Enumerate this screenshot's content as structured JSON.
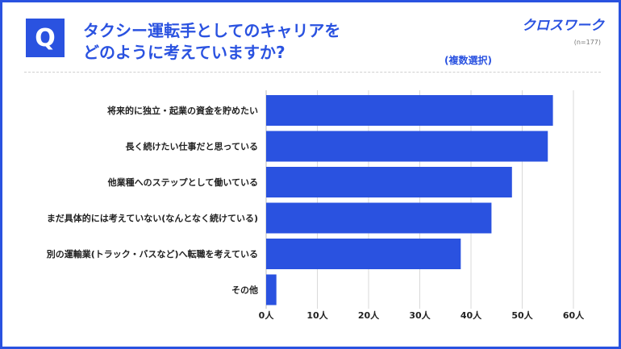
{
  "header": {
    "q_badge": "Q",
    "title_line1": "タクシー運転手としてのキャリアを",
    "title_line2": "どのように考えていますか?",
    "logo": "クロスワーク",
    "sample_size": "(n=177)",
    "note": "(複数選択)"
  },
  "colors": {
    "accent": "#2a52e0",
    "bar": "#2a52e0",
    "grid": "#d9d9d9"
  },
  "chart_data": {
    "type": "bar",
    "orientation": "horizontal",
    "categories": [
      "将来的に独立・起業の資金を貯めたい",
      "長く続けたい仕事だと思っている",
      "他業種へのステップとして働いている",
      "まだ具体的には考えていない(なんとなく続けている)",
      "別の運輸業(トラック・バスなど)へ転職を考えている",
      "その他"
    ],
    "values": [
      56,
      55,
      48,
      44,
      38,
      2
    ],
    "xlim": [
      0,
      60
    ],
    "xticks": [
      "0人",
      "10人",
      "20人",
      "30人",
      "40人",
      "50人",
      "60人"
    ],
    "grid": true
  }
}
